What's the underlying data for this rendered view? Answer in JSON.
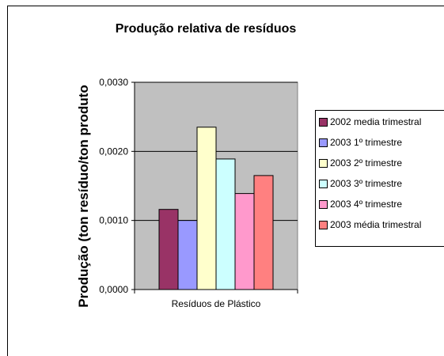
{
  "chart_data": {
    "type": "bar",
    "title": "Produção relativa de resíduos",
    "xlabel": "Resíduos de Plástico",
    "ylabel": "Produção (ton resíduo/ton produto",
    "categories": [
      "Resíduos de Plástico"
    ],
    "series": [
      {
        "name": "2002 media trimestral",
        "values": [
          0.00116
        ],
        "color": "#993366"
      },
      {
        "name": "2003 1º trimestre",
        "values": [
          0.001
        ],
        "color": "#9999FF"
      },
      {
        "name": "2003 2º trimestre",
        "values": [
          0.00235
        ],
        "color": "#FFFFCC"
      },
      {
        "name": "2003 3º trimestre",
        "values": [
          0.00189
        ],
        "color": "#CCFFFF"
      },
      {
        "name": "2003 4º trimestre",
        "values": [
          0.00139
        ],
        "color": "#FF99CC"
      },
      {
        "name": "2003 média trimestral",
        "values": [
          0.00165
        ],
        "color": "#FF8080"
      }
    ],
    "ylim": [
      0,
      0.003
    ],
    "yticks": [
      0,
      0.001,
      0.002,
      0.003
    ],
    "ytick_labels": [
      "0,0000",
      "0,0010",
      "0,0020",
      "0,0030"
    ],
    "grid": true,
    "plot_background": "#C0C0C0",
    "legend_position": "right"
  }
}
